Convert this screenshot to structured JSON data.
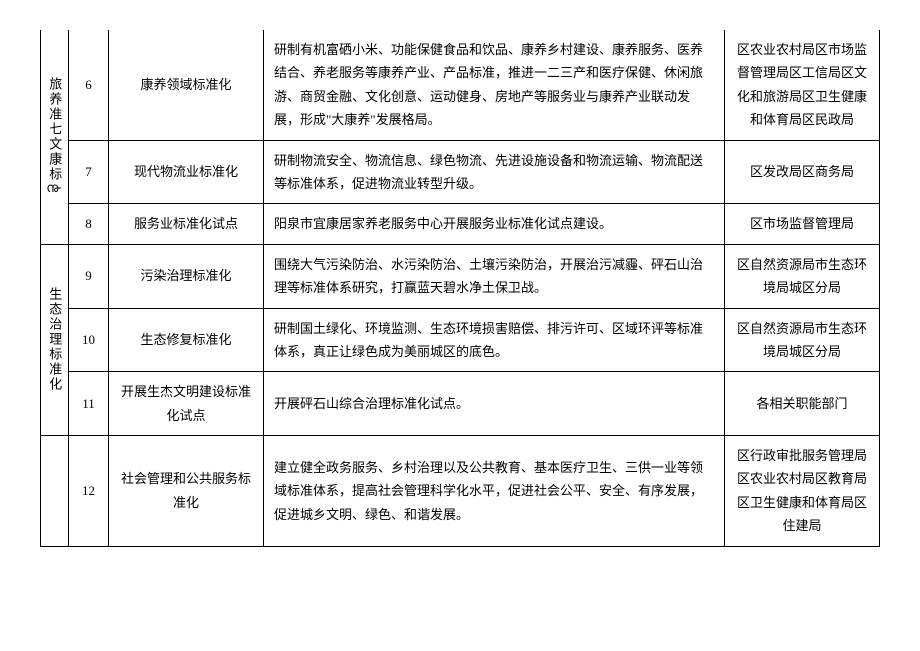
{
  "table": {
    "category1": "旅养准七文康标൹",
    "category2": "生态治理标准化",
    "rows": [
      {
        "num": "6",
        "name": "康养领域标准化",
        "desc": "研制有机富硒小米、功能保健食品和饮品、康养乡村建设、康养服务、医养结合、养老服务等康养产业、产品标准，推进一二三产和医疗保健、休闲旅游、商贸金融、文化创意、运动健身、房地产等服务业与康养产业联动发展，形成\"大康养\"发展格局。",
        "dept": "区农业农村局区市场监督管理局区工信局区文化和旅游局区卫生健康和体育局区民政局"
      },
      {
        "num": "7",
        "name": "现代物流业标准化",
        "desc": "研制物流安全、物流信息、绿色物流、先进设施设备和物流运输、物流配送等标准体系，促进物流业转型升级。",
        "dept": "区发改局区商务局"
      },
      {
        "num": "8",
        "name": "服务业标准化试点",
        "desc": "阳泉市宜康居家养老服务中心开展服务业标准化试点建设。",
        "dept": "区市场监督管理局"
      },
      {
        "num": "9",
        "name": "污染治理标准化",
        "desc": "围绕大气污染防治、水污染防治、土壤污染防治，开展治污减霾、砰石山治理等标准体系研究，打赢蓝天碧水净土保卫战。",
        "dept": "区自然资源局市生态环境局城区分局"
      },
      {
        "num": "10",
        "name": "生态修复标准化",
        "desc": "研制国土绿化、环境监测、生态环境损害赔偿、排污许可、区域环评等标准体系，真正让绿色成为美丽城区的底色。",
        "dept": "区自然资源局市生态环境局城区分局"
      },
      {
        "num": "11",
        "name": "开展生杰文明建设标准化试点",
        "desc": "开展砰石山综合治理标准化试点。",
        "dept": "各相关职能部门"
      },
      {
        "num": "12",
        "name": "社会管理和公共服务标准化",
        "desc": "建立健全政务服务、乡村治理以及公共教育、基本医疗卫生、三供一业等领域标准体系，提高社会管理科学化水平，促进社会公平、安全、有序发展，促进城乡文明、绿色、和谐发展。",
        "dept": "区行政审批服务管理局区农业农村局区教育局区卫生健康和体育局区住建局"
      }
    ]
  }
}
